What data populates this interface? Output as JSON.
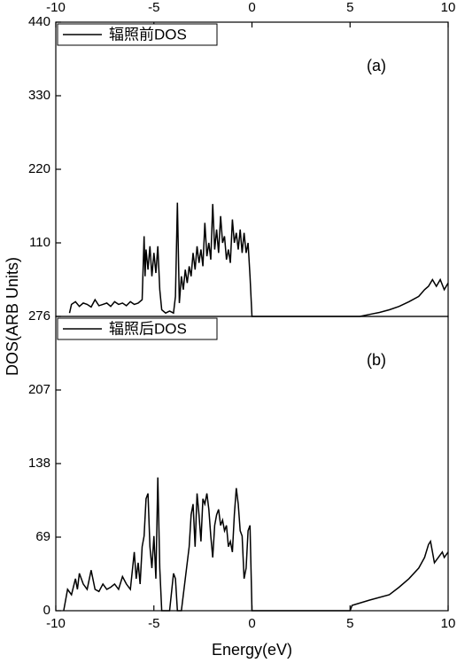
{
  "ylabel": "DOS(ARB Units)",
  "chart_data": [
    {
      "type": "line",
      "annotation": "(a)",
      "legend": "upper left",
      "xaxis_position": "top",
      "x": [
        -9.3,
        -9.2,
        -9.0,
        -8.8,
        -8.6,
        -8.4,
        -8.2,
        -8.0,
        -7.8,
        -7.6,
        -7.4,
        -7.2,
        -7.0,
        -6.8,
        -6.6,
        -6.4,
        -6.2,
        -6.0,
        -5.8,
        -5.6,
        -5.5,
        -5.45,
        -5.4,
        -5.3,
        -5.2,
        -5.1,
        -5.0,
        -4.9,
        -4.8,
        -4.7,
        -4.6,
        -4.4,
        -4.2,
        -4.0,
        -3.9,
        -3.8,
        -3.7,
        -3.6,
        -3.5,
        -3.4,
        -3.3,
        -3.2,
        -3.1,
        -3.0,
        -2.9,
        -2.8,
        -2.7,
        -2.6,
        -2.5,
        -2.4,
        -2.3,
        -2.2,
        -2.1,
        -2.0,
        -1.9,
        -1.8,
        -1.7,
        -1.6,
        -1.5,
        -1.4,
        -1.3,
        -1.2,
        -1.1,
        -1.0,
        -0.9,
        -0.8,
        -0.7,
        -0.6,
        -0.5,
        -0.4,
        -0.3,
        -0.2,
        -0.1,
        0.0,
        5.5,
        6.0,
        6.5,
        7.0,
        7.5,
        8.0,
        8.5,
        8.8,
        9.0,
        9.2,
        9.4,
        9.6,
        9.8,
        10.0
      ],
      "series": [
        {
          "name": "辐照前DOS",
          "color": "#000000",
          "values": [
            5,
            18,
            22,
            15,
            20,
            18,
            14,
            25,
            16,
            18,
            20,
            15,
            22,
            18,
            20,
            16,
            22,
            18,
            20,
            25,
            120,
            60,
            100,
            70,
            105,
            60,
            95,
            65,
            105,
            40,
            10,
            5,
            8,
            5,
            30,
            170,
            20,
            60,
            40,
            70,
            50,
            75,
            60,
            95,
            70,
            105,
            80,
            100,
            75,
            140,
            90,
            110,
            85,
            168,
            100,
            130,
            95,
            150,
            110,
            120,
            85,
            100,
            80,
            145,
            110,
            125,
            100,
            130,
            95,
            125,
            95,
            110,
            60,
            0,
            0,
            3,
            6,
            10,
            15,
            22,
            30,
            40,
            45,
            55,
            45,
            55,
            40,
            50
          ]
        }
      ],
      "xlim": [
        -10,
        10
      ],
      "xticks": [
        -10,
        -5,
        0,
        5,
        10
      ],
      "ylim": [
        0,
        440
      ],
      "yticks": [
        110,
        220,
        330,
        440
      ]
    },
    {
      "type": "line",
      "annotation": "(b)",
      "legend": "upper left",
      "xaxis_position": "bottom",
      "xlabel": "Energy(eV)",
      "x": [
        -9.6,
        -9.4,
        -9.2,
        -9.0,
        -8.9,
        -8.8,
        -8.6,
        -8.4,
        -8.2,
        -8.0,
        -7.8,
        -7.6,
        -7.4,
        -7.2,
        -7.0,
        -6.8,
        -6.6,
        -6.4,
        -6.2,
        -6.0,
        -5.9,
        -5.8,
        -5.7,
        -5.6,
        -5.5,
        -5.4,
        -5.3,
        -5.2,
        -5.1,
        -5.0,
        -4.9,
        -4.8,
        -4.7,
        -4.6,
        -4.2,
        -4.0,
        -3.9,
        -3.8,
        -3.6,
        -3.4,
        -3.2,
        -3.1,
        -3.0,
        -2.9,
        -2.8,
        -2.7,
        -2.6,
        -2.5,
        -2.4,
        -2.3,
        -2.2,
        -2.1,
        -2.0,
        -1.9,
        -1.8,
        -1.7,
        -1.6,
        -1.5,
        -1.4,
        -1.3,
        -1.2,
        -1.1,
        -1.0,
        -0.9,
        -0.8,
        -0.7,
        -0.6,
        -0.5,
        -0.4,
        -0.3,
        -0.2,
        -0.1,
        0.0,
        5.0,
        5.1,
        6.0,
        7.0,
        7.5,
        8.0,
        8.5,
        8.8,
        9.0,
        9.1,
        9.2,
        9.3,
        9.5,
        9.7,
        9.8,
        10.0
      ],
      "series": [
        {
          "name": "辐照后DOS",
          "color": "#000000",
          "values": [
            0,
            20,
            15,
            30,
            20,
            35,
            25,
            20,
            38,
            20,
            18,
            25,
            20,
            22,
            25,
            20,
            32,
            25,
            20,
            55,
            30,
            45,
            25,
            60,
            70,
            105,
            110,
            60,
            40,
            70,
            30,
            125,
            40,
            0,
            0,
            35,
            30,
            0,
            0,
            30,
            60,
            90,
            100,
            60,
            110,
            90,
            65,
            105,
            100,
            110,
            95,
            70,
            50,
            80,
            90,
            95,
            80,
            85,
            75,
            80,
            60,
            65,
            55,
            90,
            115,
            100,
            75,
            70,
            30,
            40,
            75,
            80,
            0,
            0,
            5,
            10,
            15,
            22,
            30,
            40,
            50,
            62,
            65,
            55,
            45,
            50,
            55,
            50,
            55
          ]
        }
      ],
      "xlim": [
        -10,
        10
      ],
      "xticks": [
        -10,
        -5,
        0,
        5,
        10
      ],
      "ylim": [
        0,
        276
      ],
      "yticks": [
        0,
        69,
        138,
        207,
        276
      ]
    }
  ]
}
